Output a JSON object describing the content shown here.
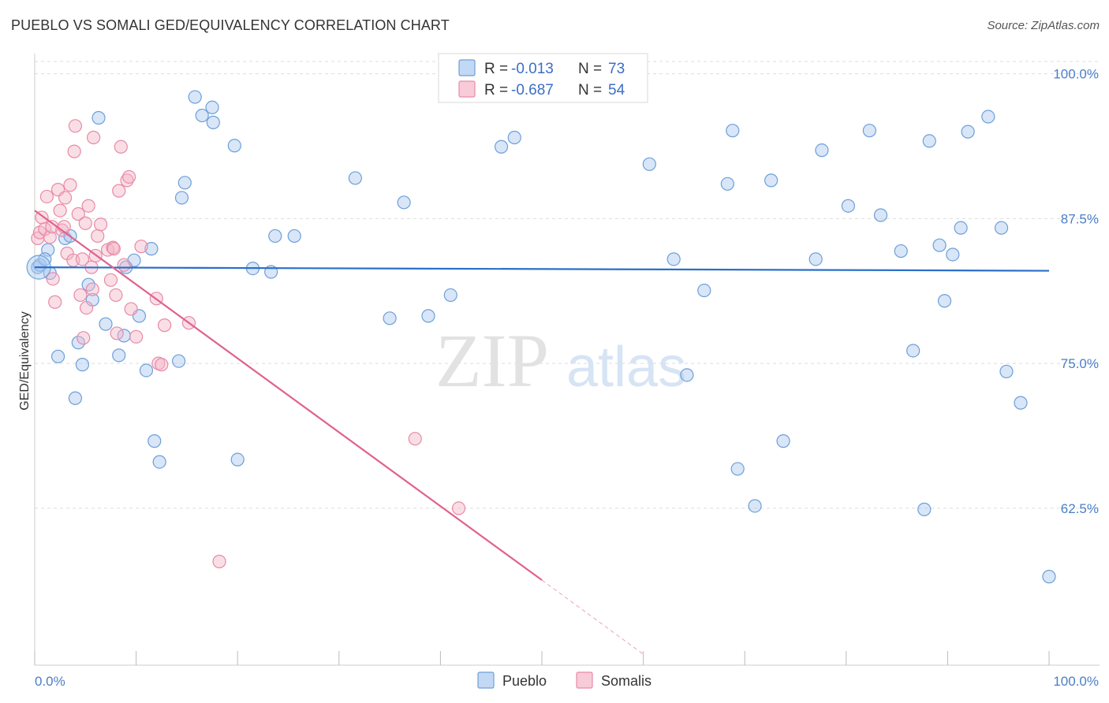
{
  "header": {
    "title": "PUEBLO VS SOMALI GED/EQUIVALENCY CORRELATION CHART",
    "source": "Source: ZipAtlas.com"
  },
  "watermark": {
    "zip": "ZIP",
    "atlas": "atlas"
  },
  "colors": {
    "pueblo_fill": "#a9c8ef",
    "pueblo_stroke": "#6d9fd8",
    "pueblo_line": "#2a6fc9",
    "somalis_fill": "#f5b5c8",
    "somalis_stroke": "#e88aa6",
    "somalis_line": "#e0628e",
    "tick_text": "#4a7ec8",
    "grid": "#dddddd"
  },
  "legend": {
    "rows": [
      {
        "series": "Pueblo",
        "r_label": "R =",
        "r_value": "-0.013",
        "n_label": "N =",
        "n_value": "73"
      },
      {
        "series": "Somalis",
        "r_label": "R =",
        "r_value": "-0.687",
        "n_label": "N =",
        "n_value": "54"
      }
    ]
  },
  "chart_data": {
    "type": "scatter",
    "title": "PUEBLO VS SOMALI GED/EQUIVALENCY CORRELATION CHART",
    "xlabel": "",
    "ylabel": "GED/Equivalency",
    "xlim": [
      0,
      100
    ],
    "ylim": [
      49.5,
      101.2
    ],
    "x_tick_labels": [
      "0.0%",
      "100.0%"
    ],
    "y_ticks": [
      62.5,
      75.0,
      87.5,
      100.0
    ],
    "y_tick_labels": [
      "62.5%",
      "75.0%",
      "87.5%",
      "100.0%"
    ],
    "grid": true,
    "legend_position": "bottom-center",
    "series": [
      {
        "name": "Pueblo",
        "trend": {
          "x": [
            0,
            100
          ],
          "y": [
            83.3,
            83.0
          ],
          "solid_until": 100
        },
        "points": [
          {
            "x": 0.3,
            "y": 83.3
          },
          {
            "x": 1.3,
            "y": 84.8
          },
          {
            "x": 1.5,
            "y": 82.8
          },
          {
            "x": 2.3,
            "y": 75.6
          },
          {
            "x": 3.0,
            "y": 85.8
          },
          {
            "x": 3.5,
            "y": 86.0
          },
          {
            "x": 4.0,
            "y": 72.0
          },
          {
            "x": 4.3,
            "y": 76.8
          },
          {
            "x": 4.7,
            "y": 74.9
          },
          {
            "x": 5.3,
            "y": 81.8
          },
          {
            "x": 5.7,
            "y": 80.5
          },
          {
            "x": 6.3,
            "y": 96.2
          },
          {
            "x": 7.0,
            "y": 78.4
          },
          {
            "x": 8.3,
            "y": 75.7
          },
          {
            "x": 8.8,
            "y": 77.4
          },
          {
            "x": 9.0,
            "y": 83.3
          },
          {
            "x": 9.8,
            "y": 83.9
          },
          {
            "x": 10.3,
            "y": 79.1
          },
          {
            "x": 11.0,
            "y": 74.4
          },
          {
            "x": 11.5,
            "y": 84.9
          },
          {
            "x": 11.8,
            "y": 68.3
          },
          {
            "x": 12.3,
            "y": 66.5
          },
          {
            "x": 14.2,
            "y": 75.2
          },
          {
            "x": 14.5,
            "y": 89.3
          },
          {
            "x": 14.8,
            "y": 90.6
          },
          {
            "x": 15.8,
            "y": 98.0
          },
          {
            "x": 16.5,
            "y": 96.4
          },
          {
            "x": 17.5,
            "y": 97.1
          },
          {
            "x": 17.6,
            "y": 95.8
          },
          {
            "x": 19.7,
            "y": 93.8
          },
          {
            "x": 20.0,
            "y": 66.7
          },
          {
            "x": 21.5,
            "y": 83.2
          },
          {
            "x": 23.3,
            "y": 82.9
          },
          {
            "x": 23.7,
            "y": 86.0
          },
          {
            "x": 25.6,
            "y": 86.0
          },
          {
            "x": 31.6,
            "y": 91.0
          },
          {
            "x": 35.0,
            "y": 78.9
          },
          {
            "x": 36.4,
            "y": 88.9
          },
          {
            "x": 38.8,
            "y": 79.1
          },
          {
            "x": 41.0,
            "y": 80.9
          },
          {
            "x": 46.0,
            "y": 93.7
          },
          {
            "x": 47.3,
            "y": 94.5
          },
          {
            "x": 60.6,
            "y": 92.2
          },
          {
            "x": 63.0,
            "y": 84.0
          },
          {
            "x": 64.3,
            "y": 74.0
          },
          {
            "x": 66.0,
            "y": 81.3
          },
          {
            "x": 68.3,
            "y": 90.5
          },
          {
            "x": 68.8,
            "y": 95.1
          },
          {
            "x": 69.3,
            "y": 65.9
          },
          {
            "x": 71.0,
            "y": 62.7
          },
          {
            "x": 72.6,
            "y": 90.8
          },
          {
            "x": 73.8,
            "y": 68.3
          },
          {
            "x": 77.0,
            "y": 84.0
          },
          {
            "x": 77.6,
            "y": 93.4
          },
          {
            "x": 80.2,
            "y": 88.6
          },
          {
            "x": 82.3,
            "y": 95.1
          },
          {
            "x": 83.4,
            "y": 87.8
          },
          {
            "x": 85.4,
            "y": 84.7
          },
          {
            "x": 86.6,
            "y": 76.1
          },
          {
            "x": 87.7,
            "y": 62.4
          },
          {
            "x": 88.2,
            "y": 94.2
          },
          {
            "x": 89.2,
            "y": 85.2
          },
          {
            "x": 89.7,
            "y": 80.4
          },
          {
            "x": 90.5,
            "y": 84.4
          },
          {
            "x": 91.3,
            "y": 86.7
          },
          {
            "x": 92.0,
            "y": 95.0
          },
          {
            "x": 94.0,
            "y": 96.3
          },
          {
            "x": 95.3,
            "y": 86.7
          },
          {
            "x": 95.8,
            "y": 74.3
          },
          {
            "x": 97.2,
            "y": 71.6
          },
          {
            "x": 100.0,
            "y": 56.6
          },
          {
            "x": 0.5,
            "y": 83.5
          },
          {
            "x": 1.0,
            "y": 84.0
          }
        ]
      },
      {
        "name": "Somalis",
        "trend": {
          "x": [
            0,
            50,
            60
          ],
          "y": [
            88.2,
            56.3,
            49.9
          ],
          "solid_until": 50
        },
        "points": [
          {
            "x": 0.3,
            "y": 85.8
          },
          {
            "x": 0.5,
            "y": 86.3
          },
          {
            "x": 0.7,
            "y": 87.6
          },
          {
            "x": 1.0,
            "y": 86.6
          },
          {
            "x": 1.2,
            "y": 89.4
          },
          {
            "x": 1.5,
            "y": 85.9
          },
          {
            "x": 1.7,
            "y": 86.8
          },
          {
            "x": 1.8,
            "y": 82.3
          },
          {
            "x": 2.0,
            "y": 80.3
          },
          {
            "x": 2.3,
            "y": 90.0
          },
          {
            "x": 2.5,
            "y": 88.2
          },
          {
            "x": 2.7,
            "y": 86.5
          },
          {
            "x": 2.9,
            "y": 86.8
          },
          {
            "x": 3.0,
            "y": 89.3
          },
          {
            "x": 3.2,
            "y": 84.5
          },
          {
            "x": 3.5,
            "y": 90.4
          },
          {
            "x": 3.8,
            "y": 83.9
          },
          {
            "x": 3.9,
            "y": 93.3
          },
          {
            "x": 4.0,
            "y": 95.5
          },
          {
            "x": 4.3,
            "y": 87.9
          },
          {
            "x": 4.5,
            "y": 80.9
          },
          {
            "x": 4.7,
            "y": 84.0
          },
          {
            "x": 4.8,
            "y": 77.2
          },
          {
            "x": 5.0,
            "y": 87.1
          },
          {
            "x": 5.1,
            "y": 79.8
          },
          {
            "x": 5.3,
            "y": 88.6
          },
          {
            "x": 5.6,
            "y": 83.3
          },
          {
            "x": 5.7,
            "y": 81.4
          },
          {
            "x": 5.8,
            "y": 94.5
          },
          {
            "x": 6.0,
            "y": 84.3
          },
          {
            "x": 6.5,
            "y": 87.0
          },
          {
            "x": 7.2,
            "y": 84.8
          },
          {
            "x": 7.5,
            "y": 82.2
          },
          {
            "x": 7.7,
            "y": 85.0
          },
          {
            "x": 7.8,
            "y": 84.9
          },
          {
            "x": 8.0,
            "y": 80.9
          },
          {
            "x": 8.1,
            "y": 77.6
          },
          {
            "x": 8.3,
            "y": 89.9
          },
          {
            "x": 8.5,
            "y": 93.7
          },
          {
            "x": 8.8,
            "y": 83.5
          },
          {
            "x": 9.1,
            "y": 90.8
          },
          {
            "x": 9.3,
            "y": 91.1
          },
          {
            "x": 9.5,
            "y": 79.7
          },
          {
            "x": 10.0,
            "y": 77.3
          },
          {
            "x": 10.5,
            "y": 85.1
          },
          {
            "x": 12.0,
            "y": 80.6
          },
          {
            "x": 12.2,
            "y": 75.0
          },
          {
            "x": 12.5,
            "y": 74.9
          },
          {
            "x": 12.8,
            "y": 78.3
          },
          {
            "x": 15.2,
            "y": 78.5
          },
          {
            "x": 18.2,
            "y": 57.9
          },
          {
            "x": 37.5,
            "y": 68.5
          },
          {
            "x": 41.8,
            "y": 62.5
          },
          {
            "x": 6.2,
            "y": 86.0
          }
        ]
      }
    ]
  }
}
